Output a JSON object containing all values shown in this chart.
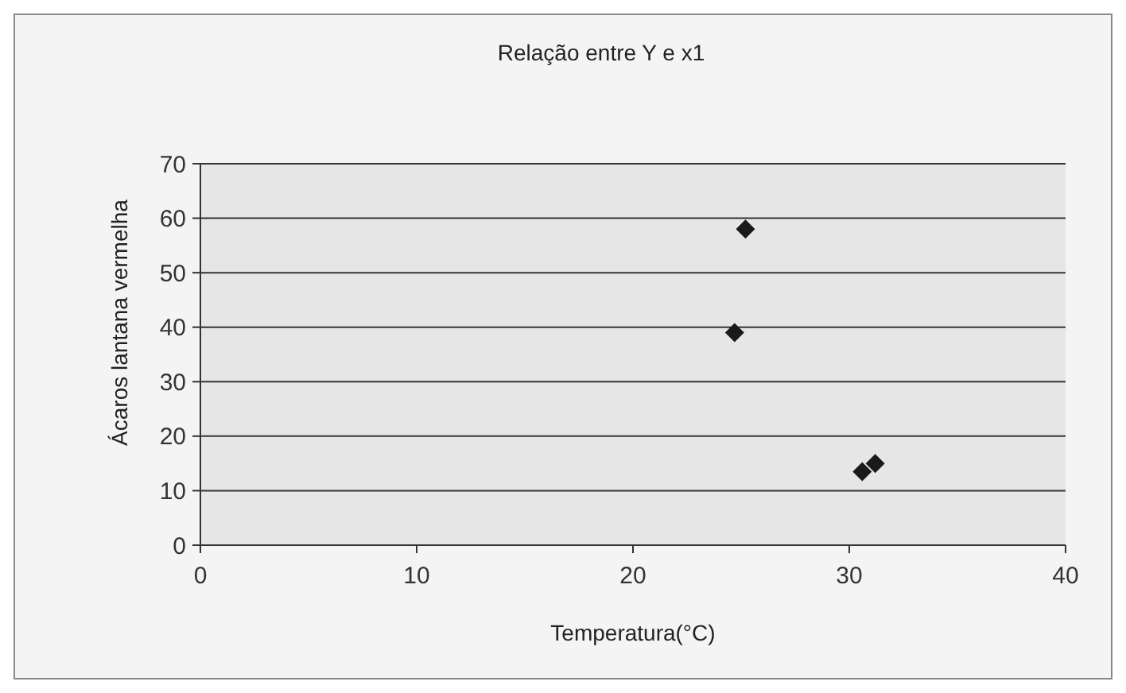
{
  "chart_data": {
    "type": "scatter",
    "title": "Relação entre Y e x1",
    "xlabel": "Temperatura(°C)",
    "ylabel": "Ácaros lantana vermelha",
    "x": [
      25.2,
      24.7,
      30.6,
      31.2
    ],
    "series": [
      {
        "color": "#1a1a1a",
        "values": [
          58,
          39,
          13.5,
          15
        ]
      }
    ],
    "xlim": [
      0,
      40
    ],
    "xticks": [
      0,
      10,
      20,
      30,
      40
    ],
    "ylim": [
      0,
      70
    ],
    "yticks": [
      0,
      10,
      20,
      30,
      40,
      50,
      60,
      70
    ],
    "grid": "y",
    "marker": "diamond"
  }
}
